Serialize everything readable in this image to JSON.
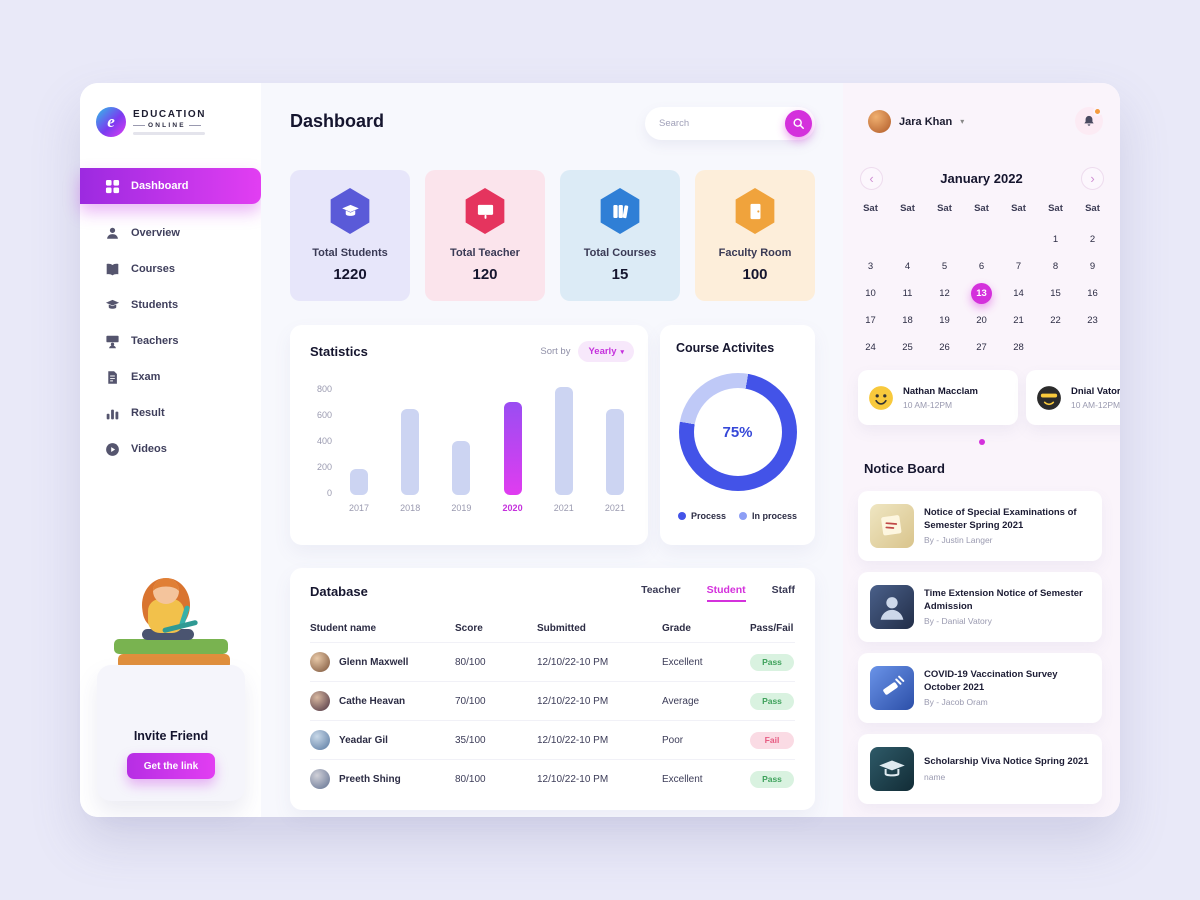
{
  "colors": {
    "accent": "#d431dc",
    "gradient_start": "#9c2ae0",
    "gradient_end": "#e23ef2",
    "pass_bg": "#d9f2e0",
    "pass_text": "#3fa25c",
    "fail_bg": "#fadbe4",
    "fail_text": "#e65c82"
  },
  "sidebar": {
    "logo": {
      "line1": "EDUCATION",
      "line2": "ONLINE"
    },
    "items": [
      {
        "label": "Dashboard",
        "icon": "dashboard-grid-icon",
        "active": true
      },
      {
        "label": "Overview",
        "icon": "overview-icon",
        "active": false
      },
      {
        "label": "Courses",
        "icon": "courses-icon",
        "active": false
      },
      {
        "label": "Students",
        "icon": "students-icon",
        "active": false
      },
      {
        "label": "Teachers",
        "icon": "teachers-icon",
        "active": false
      },
      {
        "label": "Exam",
        "icon": "exam-icon",
        "active": false
      },
      {
        "label": "Result",
        "icon": "result-icon",
        "active": false
      },
      {
        "label": "Videos",
        "icon": "videos-icon",
        "active": false
      }
    ],
    "invite": {
      "title": "Invite Friend",
      "button_label": "Get the link"
    }
  },
  "header": {
    "title": "Dashboard",
    "search_placeholder": "Search"
  },
  "stats": [
    {
      "icon": "graduation-cap-icon",
      "label": "Total Students",
      "value": "1220",
      "bg": "#e7e6fa",
      "color": "#5a5ad8"
    },
    {
      "icon": "presentation-icon",
      "label": "Total Teacher",
      "value": "120",
      "bg": "#fbe4ec",
      "color": "#e5345e"
    },
    {
      "icon": "books-icon",
      "label": "Total Courses",
      "value": "15",
      "bg": "#dcebf6",
      "color": "#2f7fd6"
    },
    {
      "icon": "door-icon",
      "label": "Faculty Room",
      "value": "100",
      "bg": "#fdeeda",
      "color": "#f0a33c"
    }
  ],
  "statistics": {
    "title": "Statistics",
    "sort_label": "Sort by",
    "sort_value": "Yearly"
  },
  "course_activities": {
    "title": "Course Activites",
    "percent_label": "75%"
  },
  "chart_data": [
    {
      "type": "bar",
      "title": "Statistics",
      "categories": [
        "2017",
        "2018",
        "2019",
        "2020",
        "2021",
        "2021"
      ],
      "values": [
        180,
        600,
        380,
        650,
        760,
        600
      ],
      "highlight_index": 3,
      "bar_color": "#ccd4f2",
      "ylim": [
        0,
        800
      ],
      "yticks": [
        0,
        200,
        400,
        600,
        800
      ],
      "grid": false,
      "sort_by": "Yearly"
    },
    {
      "type": "donut",
      "title": "Course Activites",
      "percent": 75,
      "colors": {
        "process": "#4353e8",
        "in_process_track": "#bfc9f7",
        "in_process_dot": "#8d9ef5"
      },
      "legend": [
        {
          "label": "Process",
          "color": "#4353e8"
        },
        {
          "label": "In process",
          "color": "#8d9ef5"
        }
      ],
      "legend_position": "bottom"
    }
  ],
  "database": {
    "title": "Database",
    "tabs": [
      "Teacher",
      "Student",
      "Staff"
    ],
    "active_tab": "Student",
    "headers": [
      "Student name",
      "Score",
      "Submitted",
      "Grade",
      "Pass/Fail"
    ],
    "rows": [
      {
        "name": "Glenn Maxwell",
        "score": "80/100",
        "submitted": "12/10/22-10 PM",
        "grade": "Excellent",
        "status": "Pass"
      },
      {
        "name": "Cathe Heavan",
        "score": "70/100",
        "submitted": "12/10/22-10 PM",
        "grade": "Average",
        "status": "Pass"
      },
      {
        "name": "Yeadar Gil",
        "score": "35/100",
        "submitted": "12/10/22-10 PM",
        "grade": "Poor",
        "status": "Fail"
      },
      {
        "name": "Preeth Shing",
        "score": "80/100",
        "submitted": "12/10/22-10 PM",
        "grade": "Excellent",
        "status": "Pass"
      }
    ]
  },
  "right": {
    "user": {
      "name": "Jara Khan"
    },
    "calendar": {
      "month": "January 2022",
      "day_headers": [
        "Sat",
        "Sat",
        "Sat",
        "Sat",
        "Sat",
        "Sat",
        "Sat"
      ],
      "cells": [
        "",
        "",
        "",
        "",
        "",
        "1",
        "2",
        "3",
        "4",
        "5",
        "6",
        "7",
        "8",
        "9",
        "10",
        "11",
        "12",
        "13",
        "14",
        "15",
        "16",
        "17",
        "18",
        "19",
        "20",
        "21",
        "22",
        "23",
        "24",
        "25",
        "26",
        "27",
        "28",
        "",
        ""
      ],
      "selected": "13"
    },
    "events": [
      {
        "name": "Nathan Macclam",
        "time": "10 AM-12PM",
        "avatar": "smiley"
      },
      {
        "name": "Dnial Vator",
        "time": "10 AM-12PM",
        "avatar": "cool"
      }
    ],
    "notice_board": {
      "title": "Notice Board",
      "items": [
        {
          "title": "Notice of Special Examinations of Semester Spring 2021",
          "by": "By - Justin Langer",
          "thumb": "sticky-note"
        },
        {
          "title": "Time Extension Notice of Semester Admission",
          "by": "By - Danial Vatory",
          "thumb": "writing"
        },
        {
          "title": "COVID-19 Vaccination Survey October 2021",
          "by": "By - Jacob Oram",
          "thumb": "vaccine"
        },
        {
          "title": "Scholarship Viva Notice Spring 2021",
          "by": "name",
          "thumb": "graduation"
        }
      ]
    }
  }
}
